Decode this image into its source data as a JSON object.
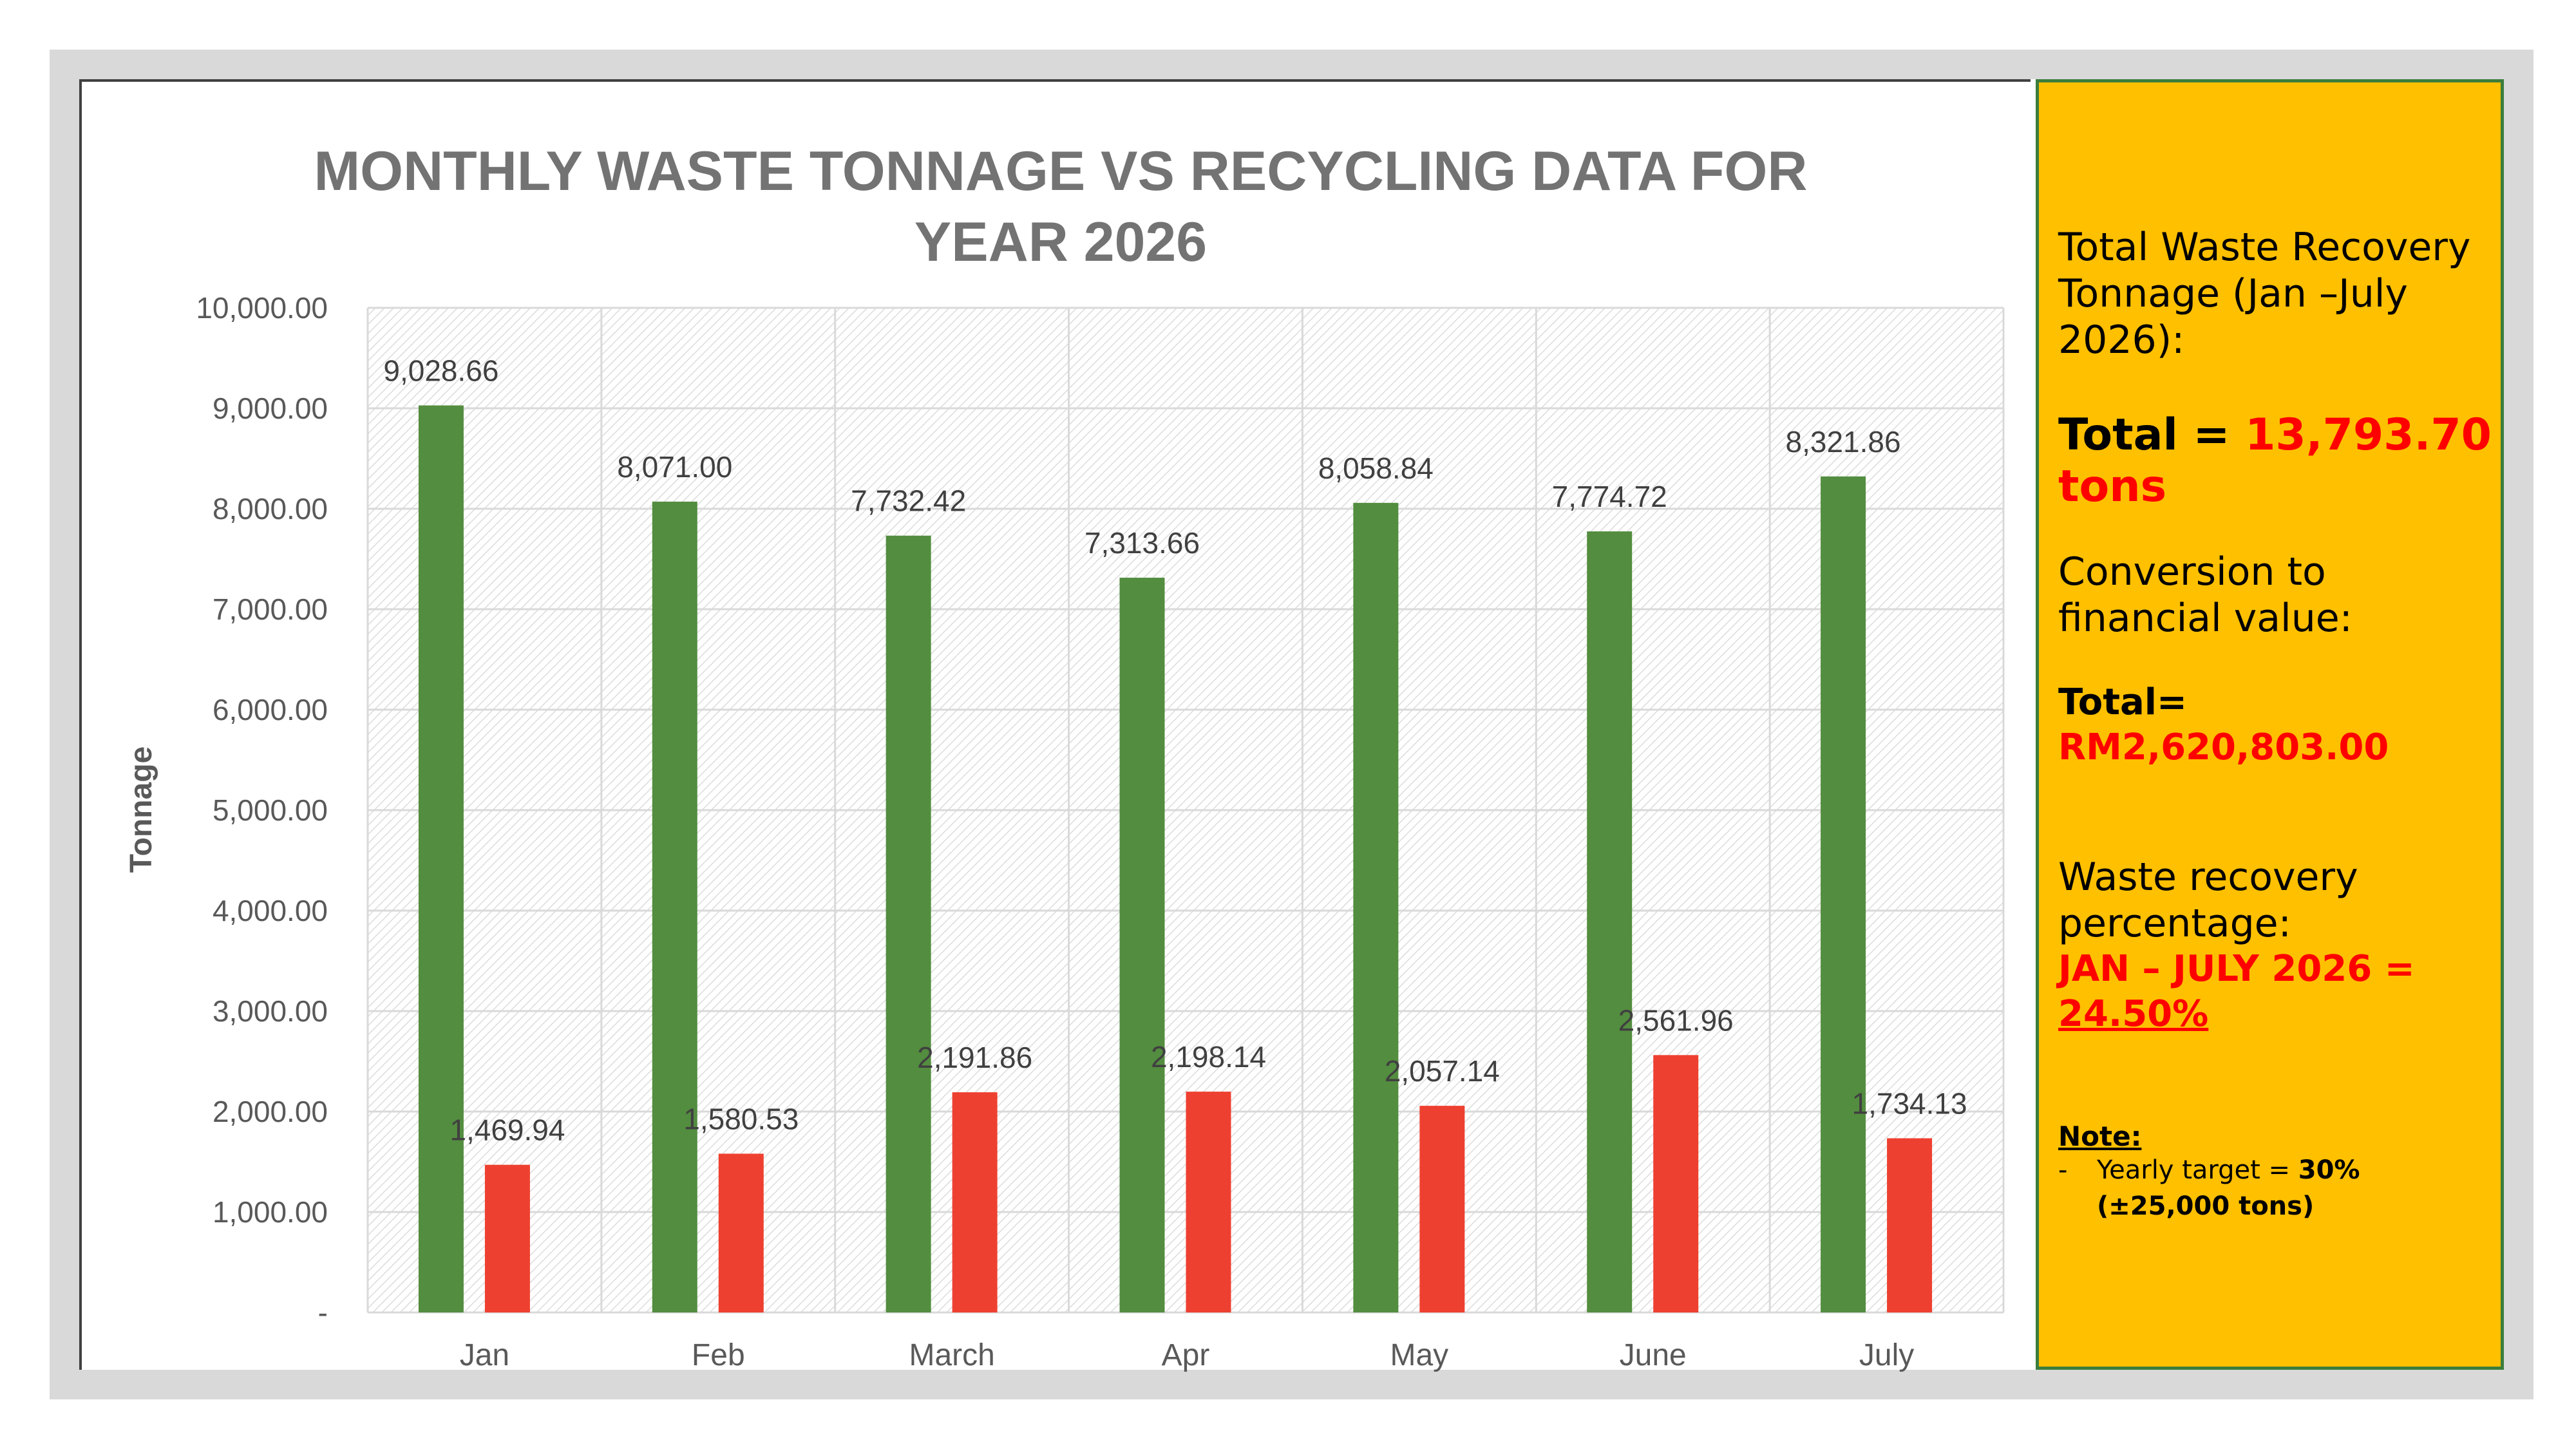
{
  "chart_data": {
    "type": "bar",
    "title_line1": "MONTHLY WASTE TONNAGE VS RECYCLING DATA FOR",
    "title_line2": "YEAR 2026",
    "ylabel": "Tonnage",
    "xlabel": "",
    "ylim": [
      0,
      10000
    ],
    "y_ticks": [
      "-",
      "1,000.00",
      "2,000.00",
      "3,000.00",
      "4,000.00",
      "5,000.00",
      "6,000.00",
      "7,000.00",
      "8,000.00",
      "9,000.00",
      "10,000.00"
    ],
    "categories": [
      "Jan",
      "Feb",
      "March",
      "Apr",
      "May",
      "June",
      "July"
    ],
    "series": [
      {
        "color": "#538d3f",
        "values": [
          9028.66,
          8071.0,
          7732.42,
          7313.66,
          8058.84,
          7774.72,
          8321.86
        ],
        "labels": [
          "9,028.66",
          "8,071.00",
          "7,732.42",
          "7,313.66",
          "8,058.84",
          "7,774.72",
          "8,321.86"
        ]
      },
      {
        "color": "#ee4030",
        "values": [
          1469.94,
          1580.53,
          2191.86,
          2198.14,
          2057.14,
          2561.96,
          1734.13
        ],
        "labels": [
          "1,469.94",
          "1,580.53",
          "2,191.86",
          "2,198.14",
          "2,057.14",
          "2,561.96",
          "1,734.13"
        ]
      }
    ],
    "grid": true,
    "legend": "none"
  },
  "panel": {
    "recovery_title": "Total Waste Recovery Tonnage (Jan –July 2026):",
    "total_label": "Total = ",
    "total_value": "13,793.70",
    "total_unit": "tons",
    "conversion_title": "Conversion to financial value:",
    "financial_label": "Total= ",
    "financial_value": "RM2,620,803.00",
    "percentage_title": "Waste recovery percentage:",
    "percentage_period": "JAN – JULY 2026 =",
    "percentage_value": "24.50%",
    "note_title": "Note:",
    "note_bullet": "-",
    "note_text": "Yearly target = ",
    "note_bold": "30% (±25,000 tons)"
  },
  "colors": {
    "panel_bg": "#ffc000",
    "panel_border": "#3c7d3c",
    "accent_red": "#ff0000"
  }
}
